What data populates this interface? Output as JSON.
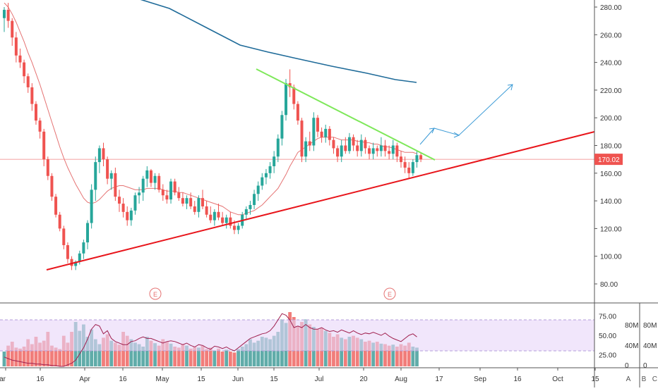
{
  "chart_data": [
    {
      "type": "candlestick",
      "title": "",
      "xlabel": "",
      "ylabel": "",
      "ylim": [
        70,
        290
      ],
      "x_axis_labels": [
        "Mar",
        "16",
        "Apr",
        "16",
        "May",
        "15",
        "Jun",
        "15",
        "Jul",
        "20",
        "Aug",
        "17",
        "Sep",
        "16",
        "Oct",
        "15"
      ],
      "y_ticks": [
        "80.00",
        "100.00",
        "120.00",
        "140.00",
        "160.00",
        "180.00",
        "200.00",
        "220.00",
        "240.00",
        "260.00",
        "280.00"
      ],
      "last_price": "170.02",
      "earnings_markers": [
        "E",
        "E"
      ],
      "colors": {
        "up": "#26a69a",
        "down": "#ef5350",
        "ma_short": "#e57373",
        "ma_long": "#1f6b99",
        "support": "#e8151b",
        "resistance": "#7ee85a",
        "projection": "#3c9bd6",
        "price_line": "#f08080"
      },
      "ohlc": [
        [
          272,
          280,
          262,
          278
        ],
        [
          278,
          283,
          265,
          270
        ],
        [
          270,
          272,
          252,
          258
        ],
        [
          258,
          262,
          240,
          245
        ],
        [
          245,
          250,
          236,
          240
        ],
        [
          240,
          242,
          225,
          230
        ],
        [
          230,
          232,
          218,
          222
        ],
        [
          222,
          225,
          205,
          210
        ],
        [
          210,
          212,
          195,
          198
        ],
        [
          198,
          200,
          185,
          190
        ],
        [
          190,
          192,
          165,
          170
        ],
        [
          170,
          172,
          155,
          158
        ],
        [
          158,
          160,
          140,
          143
        ],
        [
          143,
          145,
          128,
          130
        ],
        [
          130,
          132,
          118,
          120
        ],
        [
          120,
          122,
          105,
          108
        ],
        [
          108,
          110,
          95,
          98
        ],
        [
          98,
          100,
          90,
          93
        ],
        [
          93,
          97,
          90,
          96
        ],
        [
          96,
          104,
          94,
          102
        ],
        [
          102,
          112,
          98,
          110
        ],
        [
          110,
          126,
          105,
          124
        ],
        [
          124,
          152,
          120,
          148
        ],
        [
          148,
          172,
          140,
          168
        ],
        [
          168,
          180,
          160,
          178
        ],
        [
          178,
          182,
          165,
          170
        ],
        [
          170,
          172,
          152,
          156
        ],
        [
          156,
          162,
          148,
          160
        ],
        [
          160,
          164,
          140,
          143
        ],
        [
          143,
          148,
          132,
          138
        ],
        [
          138,
          142,
          128,
          132
        ],
        [
          132,
          136,
          122,
          126
        ],
        [
          126,
          135,
          122,
          133
        ],
        [
          133,
          146,
          130,
          144
        ],
        [
          144,
          150,
          138,
          146
        ],
        [
          146,
          158,
          140,
          156
        ],
        [
          156,
          165,
          150,
          162
        ],
        [
          162,
          163,
          150,
          153
        ],
        [
          153,
          160,
          148,
          158
        ],
        [
          158,
          160,
          146,
          148
        ],
        [
          148,
          152,
          140,
          144
        ],
        [
          144,
          148,
          138,
          141
        ],
        [
          141,
          156,
          138,
          154
        ],
        [
          154,
          156,
          144,
          146
        ],
        [
          146,
          150,
          140,
          142
        ],
        [
          142,
          146,
          136,
          138
        ],
        [
          138,
          144,
          134,
          142
        ],
        [
          142,
          146,
          134,
          136
        ],
        [
          136,
          140,
          130,
          132
        ],
        [
          132,
          144,
          128,
          142
        ],
        [
          142,
          148,
          134,
          136
        ],
        [
          136,
          140,
          128,
          130
        ],
        [
          130,
          136,
          124,
          126
        ],
        [
          126,
          134,
          122,
          132
        ],
        [
          132,
          138,
          126,
          128
        ],
        [
          128,
          132,
          122,
          124
        ],
        [
          124,
          130,
          120,
          128
        ],
        [
          128,
          132,
          120,
          122
        ],
        [
          122,
          126,
          116,
          119
        ],
        [
          119,
          124,
          116,
          122
        ],
        [
          122,
          132,
          120,
          130
        ],
        [
          130,
          136,
          126,
          134
        ],
        [
          134,
          140,
          130,
          137
        ],
        [
          137,
          148,
          134,
          145
        ],
        [
          145,
          154,
          140,
          151
        ],
        [
          151,
          160,
          148,
          157
        ],
        [
          157,
          163,
          152,
          160
        ],
        [
          160,
          168,
          156,
          165
        ],
        [
          165,
          176,
          160,
          172
        ],
        [
          172,
          188,
          168,
          185
        ],
        [
          185,
          205,
          180,
          202
        ],
        [
          202,
          228,
          198,
          225
        ],
        [
          225,
          235,
          215,
          222
        ],
        [
          222,
          224,
          206,
          210
        ],
        [
          210,
          212,
          195,
          198
        ],
        [
          198,
          200,
          168,
          172
        ],
        [
          172,
          186,
          168,
          183
        ],
        [
          183,
          190,
          176,
          180
        ],
        [
          180,
          204,
          176,
          200
        ],
        [
          200,
          202,
          186,
          190
        ],
        [
          190,
          193,
          182,
          186
        ],
        [
          186,
          195,
          182,
          192
        ],
        [
          192,
          194,
          180,
          184
        ],
        [
          184,
          186,
          174,
          178
        ],
        [
          178,
          180,
          168,
          172
        ],
        [
          172,
          184,
          168,
          180
        ],
        [
          180,
          186,
          174,
          176
        ],
        [
          176,
          189,
          174,
          186
        ],
        [
          186,
          188,
          176,
          180
        ],
        [
          180,
          184,
          172,
          176
        ],
        [
          176,
          188,
          172,
          184
        ],
        [
          184,
          186,
          174,
          178
        ],
        [
          178,
          180,
          170,
          174
        ],
        [
          174,
          182,
          170,
          178
        ],
        [
          178,
          180,
          172,
          176
        ],
        [
          176,
          186,
          172,
          180
        ],
        [
          180,
          184,
          172,
          176
        ],
        [
          176,
          180,
          170,
          174
        ],
        [
          174,
          184,
          170,
          180
        ],
        [
          180,
          182,
          168,
          172
        ],
        [
          172,
          176,
          164,
          168
        ],
        [
          168,
          172,
          160,
          164
        ],
        [
          164,
          168,
          156,
          160
        ],
        [
          160,
          170,
          158,
          168
        ],
        [
          168,
          176,
          164,
          173
        ],
        [
          173,
          175,
          168,
          170
        ]
      ],
      "ma_short_values": [
        283,
        280,
        275,
        269,
        262,
        255,
        247,
        240,
        232,
        224,
        215,
        206,
        197,
        188,
        179,
        171,
        164,
        158,
        152,
        147,
        142,
        139,
        138,
        139,
        141,
        144,
        147,
        149,
        150,
        151,
        151,
        150,
        149,
        148,
        148,
        148,
        149,
        149,
        149,
        149,
        148,
        147,
        147,
        147,
        146,
        146,
        145,
        144,
        143,
        142,
        141,
        140,
        139,
        138,
        137,
        136,
        134,
        132,
        131,
        130,
        130,
        131,
        132,
        133,
        135,
        137,
        140,
        143,
        146,
        149,
        154,
        159,
        165,
        170,
        175,
        177,
        179,
        181,
        183,
        185,
        186,
        186,
        186,
        186,
        185,
        184,
        184,
        184,
        184,
        183,
        183,
        182,
        182,
        181,
        181,
        180,
        179,
        179,
        178,
        177,
        176,
        175,
        175,
        175,
        174
      ],
      "ma_long_values": [
        295,
        289,
        283,
        277,
        271,
        265,
        259,
        253,
        249,
        246,
        241,
        235,
        231,
        229,
        228,
        226,
        225
      ],
      "volume_axis": {
        "ticks": [
          "0",
          "40M",
          "80M"
        ]
      },
      "volumes": [
        30,
        42,
        50,
        38,
        36,
        40,
        55,
        45,
        60,
        48,
        52,
        70,
        42,
        38,
        35,
        62,
        48,
        70,
        90,
        72,
        85,
        60,
        75,
        55,
        45,
        58,
        65,
        52,
        48,
        44,
        70,
        62,
        55,
        48,
        45,
        40,
        60,
        52,
        47,
        42,
        55,
        50,
        46,
        40,
        38,
        45,
        42,
        36,
        40,
        38,
        42,
        35,
        38,
        32,
        36,
        30,
        34,
        30,
        28,
        35,
        40,
        45,
        55,
        48,
        52,
        60,
        58,
        55,
        62,
        70,
        95,
        88,
        110,
        100,
        82,
        90,
        95,
        85,
        80,
        75,
        78,
        72,
        68,
        60,
        65,
        58,
        55,
        60,
        62,
        58,
        55,
        50,
        52,
        48,
        50,
        46,
        45,
        42,
        44,
        40,
        45,
        42,
        48,
        40,
        38
      ],
      "rsi_axis": {
        "ticks": [
          "25.00",
          "50.00",
          "75.00"
        ],
        "range": [
          10,
          90
        ],
        "band": [
          30,
          70
        ]
      },
      "rsi_values": [
        22,
        20,
        18,
        17,
        16,
        15,
        14,
        14,
        13,
        13,
        12,
        12,
        11,
        11,
        10,
        10,
        12,
        14,
        18,
        26,
        34,
        45,
        58,
        64,
        62,
        52,
        56,
        46,
        42,
        40,
        38,
        38,
        42,
        43,
        46,
        48,
        46,
        46,
        44,
        42,
        40,
        42,
        43,
        42,
        40,
        38,
        40,
        37,
        35,
        38,
        37,
        34,
        32,
        36,
        35,
        33,
        35,
        32,
        30,
        34,
        38,
        42,
        46,
        48,
        50,
        52,
        53,
        56,
        62,
        70,
        78,
        76,
        70,
        60,
        62,
        60,
        64,
        60,
        58,
        58,
        60,
        57,
        55,
        56,
        54,
        57,
        55,
        53,
        56,
        53,
        51,
        53,
        52,
        54,
        52,
        50,
        53,
        49,
        46,
        44,
        42,
        46,
        50,
        52,
        48
      ]
    }
  ],
  "toolbar": {
    "btn_a": "A",
    "btn_b": "B",
    "btn_c": "C"
  }
}
